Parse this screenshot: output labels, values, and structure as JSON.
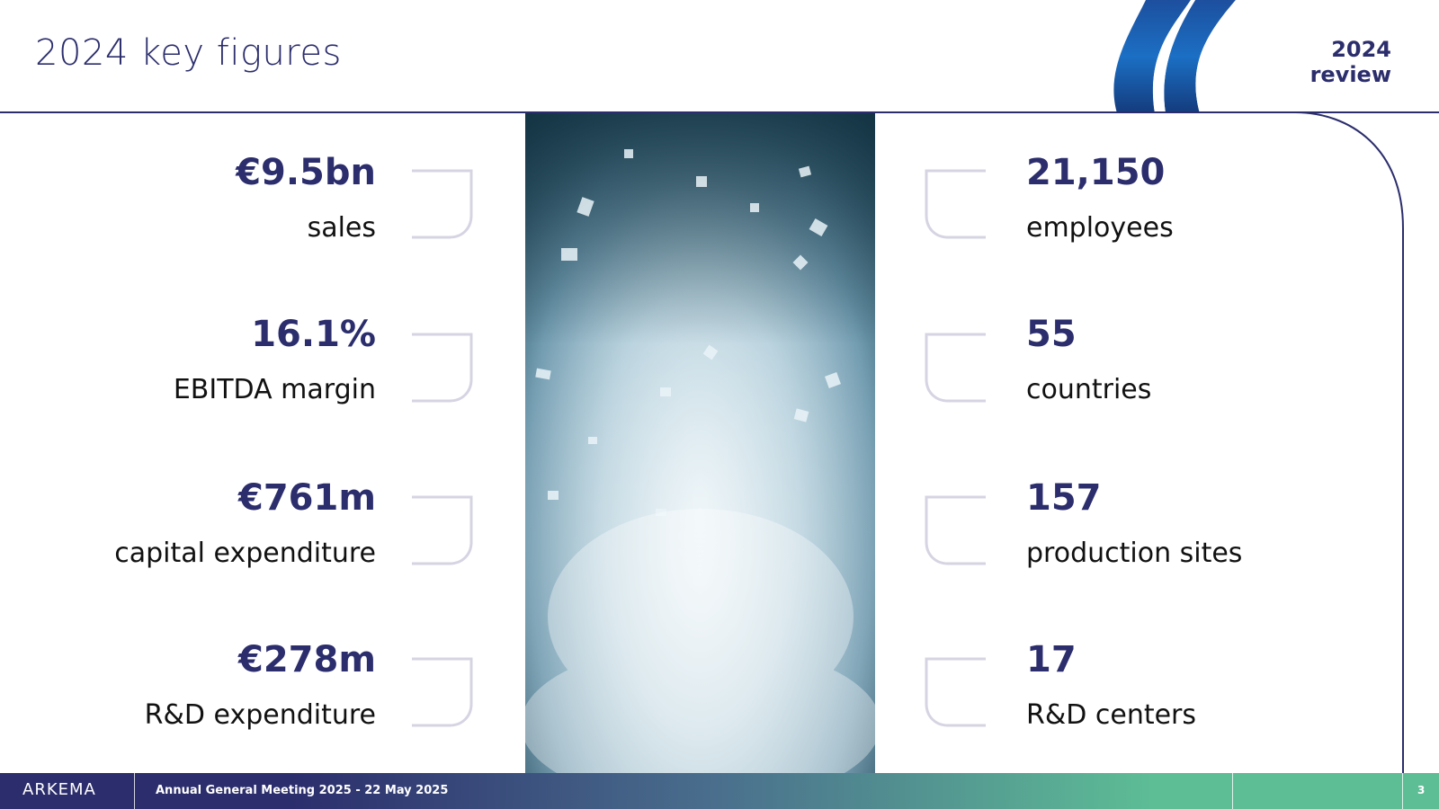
{
  "header": {
    "title": "2024 key figures",
    "review_line1": "2024",
    "review_line2": "review"
  },
  "left_stats": [
    {
      "value": "€9.5bn",
      "label": "sales"
    },
    {
      "value": "16.1%",
      "label": "EBITDA margin"
    },
    {
      "value": "€761m",
      "label": "capital expenditure"
    },
    {
      "value": "€278m",
      "label": "R&D expenditure"
    }
  ],
  "right_stats": [
    {
      "value": "21,150",
      "label": "employees"
    },
    {
      "value": "55",
      "label": "countries"
    },
    {
      "value": "157",
      "label": "production sites"
    },
    {
      "value": "17",
      "label": "R&D centers"
    }
  ],
  "footer": {
    "logo": "ARKEMA",
    "meeting": "Annual General Meeting 2025 - 22 May 2025",
    "page_number": "3"
  },
  "colors": {
    "brand_navy": "#2b2d6c",
    "brand_green": "#5dbd95",
    "bracket_gray": "#d6d4e2"
  },
  "icons": {
    "decoration": "blue-waves-logo",
    "photo": "crystals-photo"
  }
}
